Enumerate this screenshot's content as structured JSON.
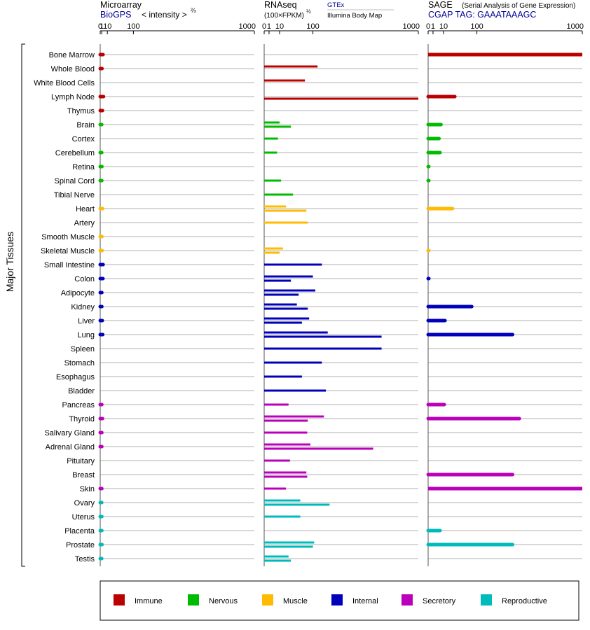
{
  "header": {
    "microarray_title": "Microarray",
    "microarray_source": "BioGPS",
    "microarray_scale": "< intensity >",
    "microarray_scale_exp": "⅔",
    "rnaseq_title": "RNAseq",
    "rnaseq_scale": "(100×FPKM)",
    "rnaseq_scale_exp": "½",
    "rnaseq_src1": "GTEx",
    "rnaseq_src2": "Illumina Body Map",
    "sage_title": "SAGE",
    "sage_subtitle": "(Serial Analysis of Gene Expression)",
    "sage_tag": "CGAP TAG: GAAATAAAGC"
  },
  "group_label": "Major Tissues",
  "colors": {
    "Immune": "#bb0000",
    "Nervous": "#00bb00",
    "Muscle": "#ffbb00",
    "Internal": "#0000bb",
    "Secretory": "#bb00bb",
    "Reproductive": "#00bbbb"
  },
  "legend": [
    {
      "label": "Immune"
    },
    {
      "label": "Nervous"
    },
    {
      "label": "Muscle"
    },
    {
      "label": "Internal"
    },
    {
      "label": "Secretory"
    },
    {
      "label": "Reproductive"
    }
  ],
  "chart_data": {
    "type": "bar",
    "orientation": "horizontal",
    "axis_ticks": [
      "0",
      "1",
      "10",
      "100",
      "1000"
    ],
    "panels": [
      {
        "name": "Microarray",
        "scale": "power_2/3",
        "xlim": [
          0,
          1000
        ]
      },
      {
        "name": "RNAseq",
        "scale": "power_1/2",
        "xlim": [
          0,
          1000
        ]
      },
      {
        "name": "SAGE",
        "scale": "power_1/2",
        "xlim": [
          0,
          1000
        ]
      }
    ],
    "tissues": [
      {
        "name": "Bone Marrow",
        "group": "Immune",
        "microarray": 2.5,
        "rnaseq": [],
        "sage": 1000
      },
      {
        "name": "Whole Blood",
        "group": "Immune",
        "microarray": 1.3,
        "rnaseq": [
          120
        ],
        "sage": null
      },
      {
        "name": "White Blood Cells",
        "group": "Immune",
        "microarray": null,
        "rnaseq": [
          70
        ],
        "sage": null
      },
      {
        "name": "Lymph Node",
        "group": "Immune",
        "microarray": 3.2,
        "rnaseq": [
          1000
        ],
        "sage": 30
      },
      {
        "name": "Thymus",
        "group": "Immune",
        "microarray": 1.8,
        "rnaseq": [],
        "sage": null
      },
      {
        "name": "Brain",
        "group": "Nervous",
        "microarray": 1.0,
        "rnaseq": [
          10,
          30
        ],
        "sage": 7
      },
      {
        "name": "Cortex",
        "group": "Nervous",
        "microarray": null,
        "rnaseq": [
          8
        ],
        "sage": 5
      },
      {
        "name": "Cerebellum",
        "group": "Nervous",
        "microarray": 1.0,
        "rnaseq": [
          7
        ],
        "sage": 6
      },
      {
        "name": "Retina",
        "group": "Nervous",
        "microarray": 1.2,
        "rnaseq": [],
        "sage": 0.01
      },
      {
        "name": "Spinal Cord",
        "group": "Nervous",
        "microarray": 1.1,
        "rnaseq": [
          12
        ],
        "sage": 0.01
      },
      {
        "name": "Tibial Nerve",
        "group": "Nervous",
        "microarray": null,
        "rnaseq": [
          35
        ],
        "sage": null
      },
      {
        "name": "Heart",
        "group": "Muscle",
        "microarray": 1.9,
        "rnaseq": [
          20,
          75
        ],
        "sage": 25
      },
      {
        "name": "Artery",
        "group": "Muscle",
        "microarray": null,
        "rnaseq": [
          80
        ],
        "sage": null
      },
      {
        "name": "Smooth Muscle",
        "group": "Muscle",
        "microarray": 1.2,
        "rnaseq": [],
        "sage": null
      },
      {
        "name": "Skeletal Muscle",
        "group": "Muscle",
        "microarray": 1.4,
        "rnaseq": [
          15,
          10
        ],
        "sage": 0.01
      },
      {
        "name": "Small Intestine",
        "group": "Internal",
        "microarray": 2.6,
        "rnaseq": [
          140
        ],
        "sage": null
      },
      {
        "name": "Colon",
        "group": "Internal",
        "microarray": 2.4,
        "rnaseq": [
          100,
          30
        ],
        "sage": 0.01
      },
      {
        "name": "Adipocyte",
        "group": "Internal",
        "microarray": 1.1,
        "rnaseq": [
          110,
          50
        ],
        "sage": null
      },
      {
        "name": "Kidney",
        "group": "Internal",
        "microarray": 1.1,
        "rnaseq": [
          45,
          80
        ],
        "sage": 80
      },
      {
        "name": "Liver",
        "group": "Internal",
        "microarray": 1.6,
        "rnaseq": [
          85,
          60
        ],
        "sage": 12
      },
      {
        "name": "Lung",
        "group": "Internal",
        "microarray": 2.1,
        "rnaseq": [
          170,
          580
        ],
        "sage": 300
      },
      {
        "name": "Spleen",
        "group": "Internal",
        "microarray": null,
        "rnaseq": [
          580
        ],
        "sage": null
      },
      {
        "name": "Stomach",
        "group": "Internal",
        "microarray": null,
        "rnaseq": [
          140
        ],
        "sage": null
      },
      {
        "name": "Esophagus",
        "group": "Internal",
        "microarray": null,
        "rnaseq": [
          60
        ],
        "sage": null
      },
      {
        "name": "Bladder",
        "group": "Internal",
        "microarray": null,
        "rnaseq": [
          160
        ],
        "sage": null
      },
      {
        "name": "Pancreas",
        "group": "Secretory",
        "microarray": 1.1,
        "rnaseq": [
          25
        ],
        "sage": 11
      },
      {
        "name": "Thyroid",
        "group": "Secretory",
        "microarray": 1.8,
        "rnaseq": [
          150,
          80
        ],
        "sage": 350
      },
      {
        "name": "Salivary Gland",
        "group": "Secretory",
        "microarray": 1.1,
        "rnaseq": [
          78
        ],
        "sage": null
      },
      {
        "name": "Adrenal Gland",
        "group": "Secretory",
        "microarray": 1.1,
        "rnaseq": [
          90,
          500
        ],
        "sage": null
      },
      {
        "name": "Pituitary",
        "group": "Secretory",
        "microarray": null,
        "rnaseq": [
          28
        ],
        "sage": null
      },
      {
        "name": "Breast",
        "group": "Secretory",
        "microarray": null,
        "rnaseq": [
          75,
          78
        ],
        "sage": 300
      },
      {
        "name": "Skin",
        "group": "Secretory",
        "microarray": 1.1,
        "rnaseq": [
          20
        ],
        "sage": 1000
      },
      {
        "name": "Ovary",
        "group": "Reproductive",
        "microarray": 1.0,
        "rnaseq": [
          55,
          180
        ],
        "sage": null
      },
      {
        "name": "Uterus",
        "group": "Reproductive",
        "microarray": 1.1,
        "rnaseq": [
          55
        ],
        "sage": null
      },
      {
        "name": "Placenta",
        "group": "Reproductive",
        "microarray": 1.1,
        "rnaseq": [],
        "sage": 6
      },
      {
        "name": "Prostate",
        "group": "Reproductive",
        "microarray": 1.3,
        "rnaseq": [
          105,
          100
        ],
        "sage": 300
      },
      {
        "name": "Testis",
        "group": "Reproductive",
        "microarray": 1.0,
        "rnaseq": [
          25,
          30
        ],
        "sage": null
      }
    ]
  }
}
